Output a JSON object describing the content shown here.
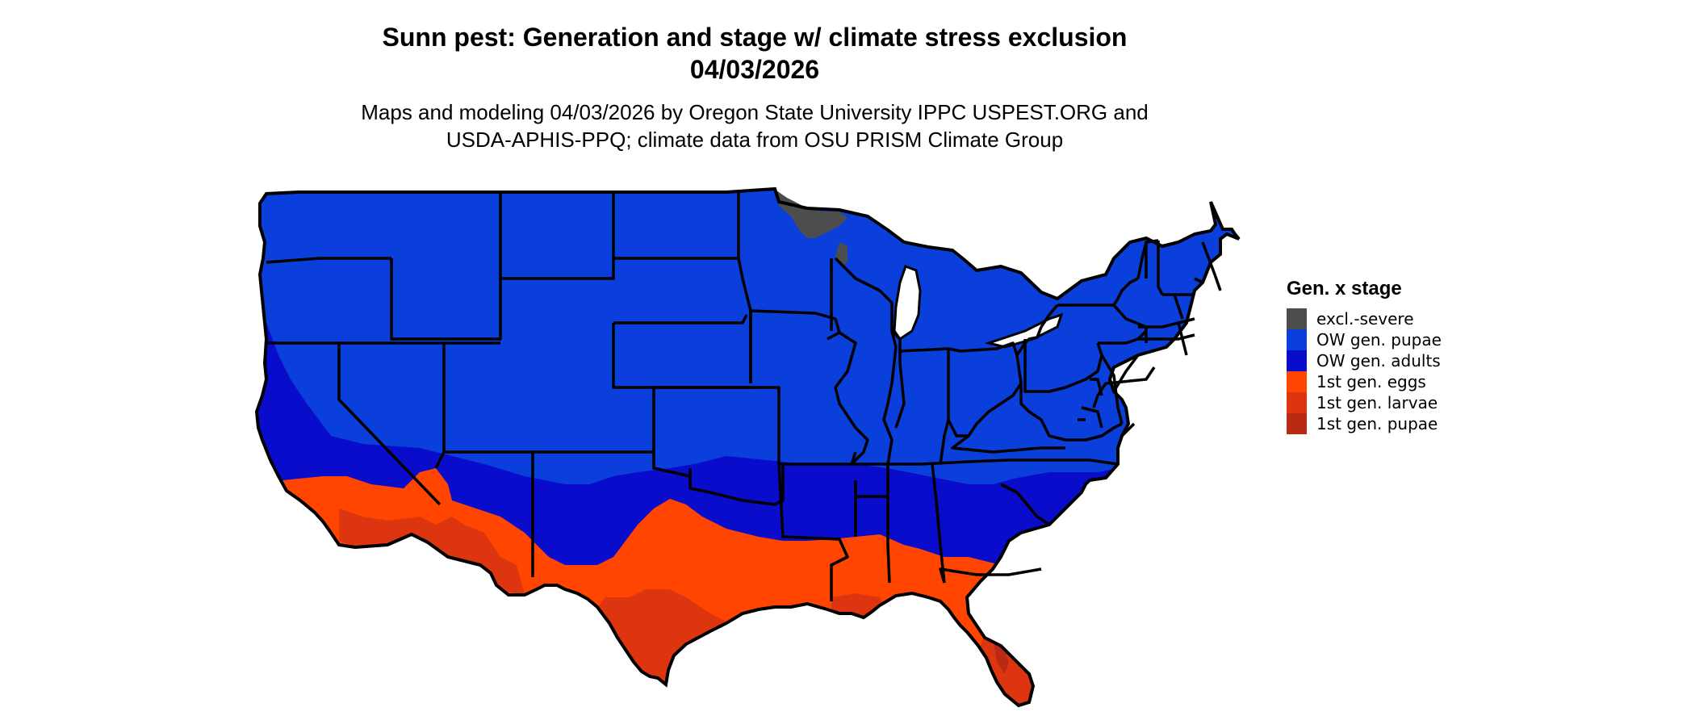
{
  "map": {
    "title_line1": "Sunn pest: Generation and stage w/ climate stress exclusion",
    "title_line2": "04/03/2026",
    "subtitle_line1": "Maps and modeling 04/03/2026 by Oregon State University IPPC USPEST.ORG and",
    "subtitle_line2": "USDA-APHIS-PPQ; climate data from OSU PRISM Climate Group",
    "region": "Contiguous United States"
  },
  "legend": {
    "title": "Gen. x stage",
    "items": [
      {
        "label": "excl.-severe",
        "color": "#4d4d4d"
      },
      {
        "label": "OW gen. pupae",
        "color": "#0a3fdc"
      },
      {
        "label": "OW gen. adults",
        "color": "#0a0ccc"
      },
      {
        "label": "1st gen. eggs",
        "color": "#ff4500"
      },
      {
        "label": "1st gen. larvae",
        "color": "#dc3510"
      },
      {
        "label": "1st gen. pupae",
        "color": "#b92a14"
      }
    ]
  },
  "colors": {
    "excl_severe": "#4d4d4d",
    "ow_pupae": "#0a3fdc",
    "ow_adults": "#0a0ccc",
    "gen1_eggs": "#ff4500",
    "gen1_larvae": "#dc3510",
    "gen1_pupae": "#b92a14",
    "border": "#000000"
  }
}
